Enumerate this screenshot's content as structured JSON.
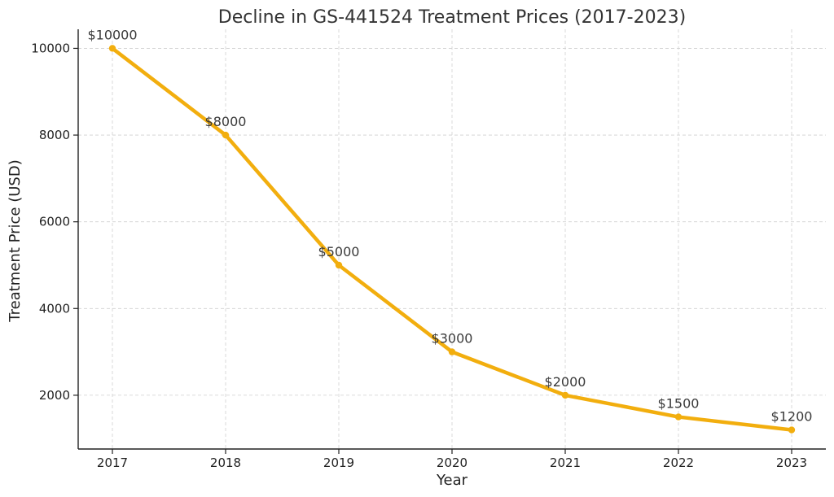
{
  "chart_data": {
    "type": "line",
    "title": "Decline in GS-441524 Treatment Prices (2017-2023)",
    "xlabel": "Year",
    "ylabel": "Treatment Price (USD)",
    "x": [
      "2017",
      "2018",
      "2019",
      "2020",
      "2021",
      "2022",
      "2023"
    ],
    "series": [
      {
        "values": [
          10000,
          8000,
          5000,
          3000,
          2000,
          1500,
          1200
        ],
        "color": "#F2AE0E"
      }
    ],
    "data_labels": [
      "$10000",
      "$8000",
      "$5000",
      "$3000",
      "$2000",
      "$1500",
      "$1200"
    ],
    "yticks": [
      "2000",
      "4000",
      "6000",
      "8000",
      "10000"
    ],
    "ylim": [
      760,
      10440
    ],
    "grid": true,
    "legend": "none"
  }
}
